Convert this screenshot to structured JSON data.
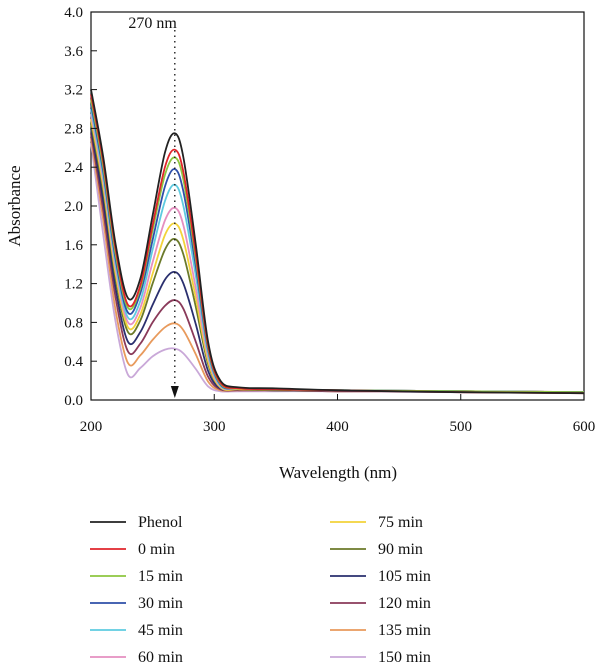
{
  "chart_data": {
    "type": "line",
    "title": "",
    "xlabel": "Wavelength (nm)",
    "ylabel": "Absorbance",
    "xlim": [
      200,
      600
    ],
    "ylim": [
      0,
      4.0
    ],
    "x_ticks": [
      "200",
      "300",
      "400",
      "500",
      "600"
    ],
    "y_ticks": [
      "0.0",
      "0.4",
      "0.8",
      "1.2",
      "1.6",
      "2.0",
      "2.4",
      "2.8",
      "3.2",
      "3.6",
      "4.0"
    ],
    "grid": false,
    "legend_position": "bottom",
    "annotation": {
      "label": "270 nm",
      "x": 268
    },
    "x": [
      200,
      210,
      220,
      230,
      240,
      250,
      260,
      268,
      275,
      285,
      295,
      305,
      320,
      350,
      400,
      500,
      600
    ],
    "series": [
      {
        "name": "Phenol",
        "color": "#222222",
        "values": [
          3.2,
          2.5,
          1.6,
          1.05,
          1.25,
          1.9,
          2.55,
          2.75,
          2.5,
          1.6,
          0.6,
          0.2,
          0.13,
          0.12,
          0.1,
          0.08,
          0.07
        ]
      },
      {
        "name": "0 min",
        "color": "#e0252b",
        "values": [
          3.15,
          2.45,
          1.55,
          0.98,
          1.18,
          1.8,
          2.4,
          2.58,
          2.35,
          1.5,
          0.56,
          0.18,
          0.12,
          0.11,
          0.1,
          0.08,
          0.07
        ]
      },
      {
        "name": "15 min",
        "color": "#8dc63f",
        "values": [
          3.1,
          2.4,
          1.5,
          0.95,
          1.15,
          1.75,
          2.32,
          2.5,
          2.27,
          1.45,
          0.54,
          0.17,
          0.12,
          0.11,
          0.1,
          0.09,
          0.08
        ]
      },
      {
        "name": "30 min",
        "color": "#2e4fa8",
        "values": [
          3.05,
          2.35,
          1.45,
          0.9,
          1.1,
          1.65,
          2.2,
          2.38,
          2.15,
          1.38,
          0.52,
          0.16,
          0.12,
          0.11,
          0.1,
          0.09,
          0.08
        ]
      },
      {
        "name": "45 min",
        "color": "#5ecbe0",
        "values": [
          3.0,
          2.3,
          1.4,
          0.85,
          1.02,
          1.55,
          2.05,
          2.22,
          2.0,
          1.28,
          0.48,
          0.15,
          0.12,
          0.11,
          0.1,
          0.09,
          0.08
        ]
      },
      {
        "name": "60 min",
        "color": "#e58fc0",
        "values": [
          2.95,
          2.25,
          1.35,
          0.8,
          0.95,
          1.42,
          1.85,
          1.98,
          1.8,
          1.15,
          0.44,
          0.14,
          0.12,
          0.11,
          0.1,
          0.09,
          0.08
        ]
      },
      {
        "name": "75 min",
        "color": "#f2d33a",
        "values": [
          2.9,
          2.2,
          1.3,
          0.75,
          0.88,
          1.3,
          1.7,
          1.82,
          1.65,
          1.05,
          0.4,
          0.13,
          0.11,
          0.11,
          0.1,
          0.09,
          0.08
        ]
      },
      {
        "name": "90 min",
        "color": "#6b7a2a",
        "values": [
          2.85,
          2.15,
          1.25,
          0.7,
          0.82,
          1.2,
          1.55,
          1.66,
          1.5,
          0.96,
          0.37,
          0.13,
          0.11,
          0.1,
          0.1,
          0.09,
          0.08
        ]
      },
      {
        "name": "105 min",
        "color": "#2a2f6e",
        "values": [
          2.8,
          2.05,
          1.15,
          0.6,
          0.7,
          0.98,
          1.24,
          1.32,
          1.2,
          0.78,
          0.3,
          0.12,
          0.11,
          0.1,
          0.1,
          0.09,
          0.08
        ]
      },
      {
        "name": "120 min",
        "color": "#8a3a5a",
        "values": [
          2.75,
          1.95,
          1.05,
          0.5,
          0.58,
          0.8,
          0.97,
          1.03,
          0.94,
          0.6,
          0.24,
          0.11,
          0.1,
          0.1,
          0.09,
          0.09,
          0.08
        ]
      },
      {
        "name": "135 min",
        "color": "#e89a5c",
        "values": [
          2.7,
          1.85,
          0.92,
          0.38,
          0.46,
          0.62,
          0.75,
          0.79,
          0.72,
          0.47,
          0.19,
          0.1,
          0.1,
          0.1,
          0.09,
          0.09,
          0.08
        ]
      },
      {
        "name": "150 min",
        "color": "#c9a8d8",
        "values": [
          2.65,
          1.7,
          0.8,
          0.26,
          0.33,
          0.45,
          0.52,
          0.53,
          0.48,
          0.32,
          0.14,
          0.09,
          0.09,
          0.09,
          0.09,
          0.08,
          0.08
        ]
      }
    ]
  }
}
